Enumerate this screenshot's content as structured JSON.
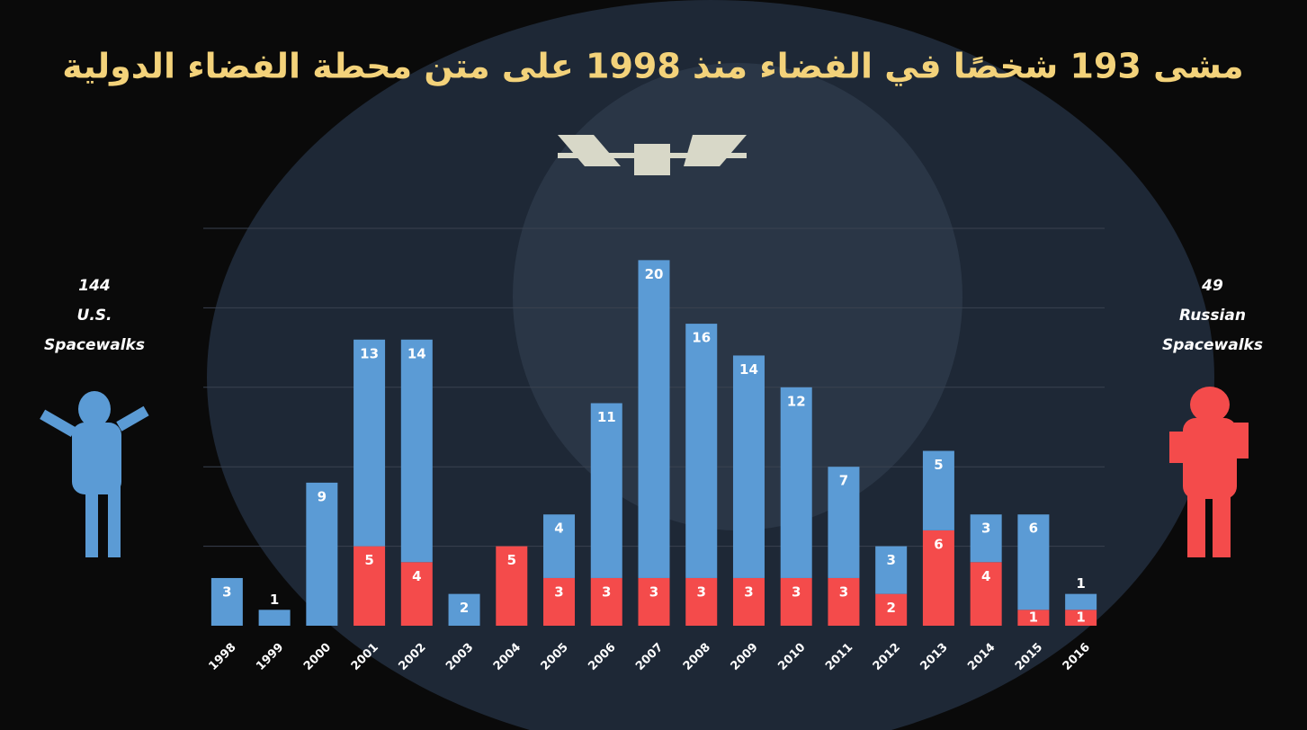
{
  "chart_data": {
    "type": "stacked_bar",
    "title": "مشى 193 شخصًا في الفضاء منذ 1998 على متن محطة الفضاء الدولية",
    "left_note": [
      "144",
      "U.S.",
      "Spacewalks"
    ],
    "right_note": [
      "49",
      "Russian",
      "Spacewalks"
    ],
    "categories": [
      "1998",
      "1999",
      "2000",
      "2001",
      "2002",
      "2003",
      "2004",
      "2005",
      "2006",
      "2007",
      "2008",
      "2009",
      "2010",
      "2011",
      "2012",
      "2013",
      "2014",
      "2015",
      "2016"
    ],
    "series": [
      {
        "color": "#f44b4b",
        "values": [
          0,
          0,
          0,
          5,
          4,
          0,
          5,
          3,
          3,
          3,
          3,
          3,
          3,
          3,
          2,
          6,
          4,
          1,
          1
        ]
      },
      {
        "color": "#5b9bd5",
        "values": [
          3,
          1,
          9,
          13,
          14,
          2,
          0,
          4,
          11,
          20,
          16,
          14,
          12,
          7,
          3,
          5,
          3,
          6,
          1
        ]
      }
    ],
    "ylim": [
      0,
      25
    ],
    "yticks": [
      5,
      10,
      15,
      20,
      25
    ],
    "grid": true
  }
}
